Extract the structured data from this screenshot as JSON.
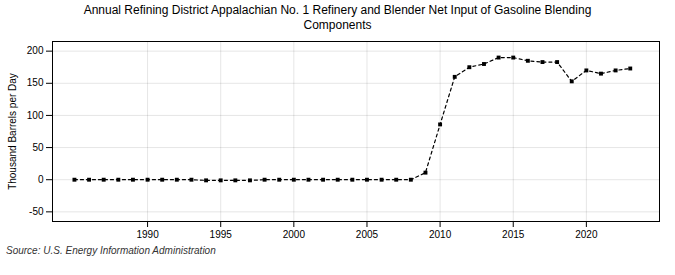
{
  "chart_data": {
    "type": "line",
    "title": "Annual Refining District Appalachian No. 1 Refinery and Blender Net Input of Gasoline Blending\nComponents",
    "ylabel": "Thousand Barrels per Day",
    "source": "Source: U.S. Energy Information Administration",
    "x": [
      1985,
      1986,
      1987,
      1988,
      1989,
      1990,
      1991,
      1992,
      1993,
      1994,
      1995,
      1996,
      1997,
      1998,
      1999,
      2000,
      2001,
      2002,
      2003,
      2004,
      2005,
      2006,
      2007,
      2008,
      2009,
      2010,
      2011,
      2012,
      2013,
      2014,
      2015,
      2016,
      2017,
      2018,
      2019,
      2020,
      2021,
      2022,
      2023
    ],
    "values": [
      0,
      0,
      0,
      0,
      0,
      0,
      0,
      0,
      0,
      -1,
      -1,
      -1,
      -1,
      0,
      0,
      0,
      0,
      0,
      0,
      0,
      0,
      0,
      0,
      0,
      11,
      86,
      160,
      175,
      180,
      190,
      190,
      185,
      183,
      183,
      153,
      170,
      165,
      170,
      173
    ],
    "xlim": [
      1983.5,
      2025
    ],
    "xticks": [
      1990,
      1995,
      2000,
      2005,
      2010,
      2015,
      2020
    ],
    "ylim": [
      -65,
      215
    ],
    "yticks": [
      -50,
      0,
      50,
      100,
      150,
      200
    ],
    "grid": true,
    "marker": "square",
    "line_style": "dashed"
  }
}
